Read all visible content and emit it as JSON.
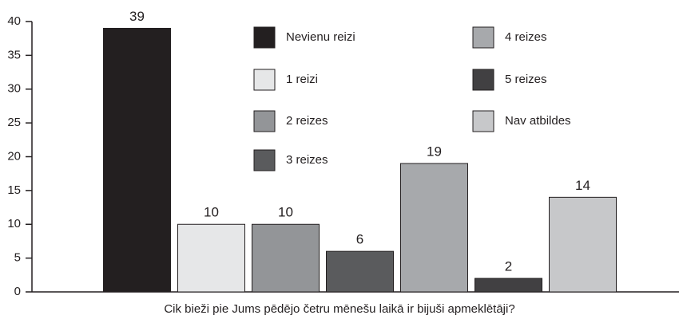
{
  "chart_data": {
    "type": "bar",
    "x_label": "Cik bieži pie Jums pēdējo četru mēnešu laikā ir bijuši apmeklētāji?",
    "categories": [
      "Nevienu reizi",
      "1 reizi",
      "2 reizes",
      "3 reizes",
      "4 reizes",
      "5 reizes",
      "Nav atbildes"
    ],
    "values": [
      39,
      10,
      10,
      6,
      19,
      2,
      14
    ],
    "colors": [
      "#231f20",
      "#e6e7e8",
      "#939598",
      "#5a5b5d",
      "#a7a9ac",
      "#414042",
      "#c7c8ca"
    ],
    "ylim": [
      0,
      40
    ],
    "yticks": [
      0,
      5,
      10,
      15,
      20,
      25,
      30,
      35,
      40
    ],
    "grid": false
  }
}
